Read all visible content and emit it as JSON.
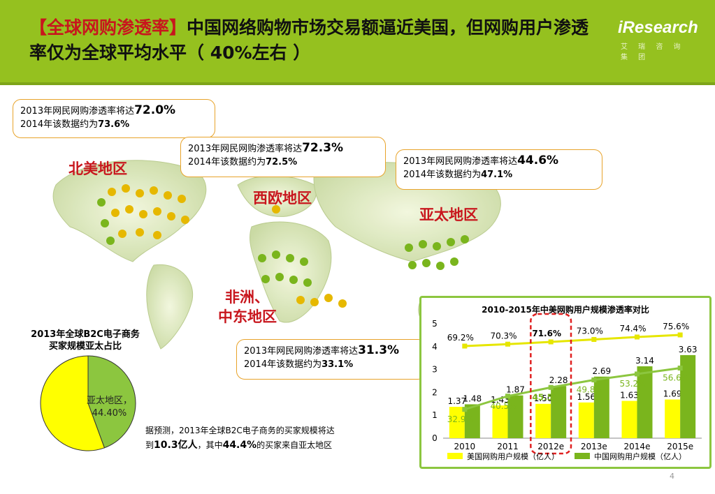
{
  "header": {
    "title_highlight": "【全球网购渗透率】",
    "title_rest": "中国网络购物市场交易额逼近美国，但网购用户渗透率仅为全球平均水平（ 40%左右 ）",
    "logo_text": "iResearch",
    "logo_sub": "艾 瑞 咨 询 集 团"
  },
  "regions": {
    "north_america": "北美地区",
    "western_europe": "西欧地区",
    "asia_pacific": "亚太地区",
    "africa_line1": "非洲、",
    "africa_line2": "中东地区"
  },
  "callouts": {
    "north_america": {
      "line1_prefix": "2013年网民网购渗透率将达",
      "line1_value": "72.0%",
      "line2_prefix": "2014年该数据约为",
      "line2_value": "73.6%"
    },
    "western_europe": {
      "line1_prefix": "2013年网民网购渗透率将达",
      "line1_value": "72.3%",
      "line2_prefix": "2014年该数据约为",
      "line2_value": "72.5%"
    },
    "asia_pacific": {
      "line1_prefix": "2013年网民网购渗透率将达",
      "line1_value": "44.6%",
      "line2_prefix": "2014年该数据约为",
      "line2_value": "47.1%"
    },
    "africa": {
      "line1_prefix": "2013年网民网购渗透率将达",
      "line1_value": "31.3%",
      "line2_prefix": "2014年该数据约为",
      "line2_value": "33.1%"
    }
  },
  "pie": {
    "title_line1": "2013年全球B2C电子商务",
    "title_line2": "买家规模亚太占比",
    "label_line1": "亚太地区，",
    "label_line2": "44.40%"
  },
  "note": {
    "part1": "据预测，2013年全球B2C电子商务的买家规模将达到",
    "value1": "10.3亿人",
    "part2": "，其中",
    "value2": "44.4%",
    "part3": "的买家来自亚太地区"
  },
  "colors": {
    "header": "#95c11f",
    "usa": "#ffff00",
    "china": "#7ab51d",
    "us_line": "#e6e600",
    "cn_line": "#8cc63f",
    "accent_red": "#c8161d",
    "callout_border": "#e8a32a"
  },
  "page_number": "4",
  "chart_data": [
    {
      "type": "pie",
      "title": "2013年全球B2C电子商务买家规模亚太占比",
      "slices": [
        {
          "name": "亚太地区",
          "value": 44.4,
          "color": "#8cc63f"
        },
        {
          "name": "",
          "value": 55.6,
          "color": "#ffff00"
        }
      ],
      "label": "亚太地区，44.40%"
    },
    {
      "type": "bar",
      "title": "2010-2015年中美网购用户规模渗透率对比",
      "categories": [
        "2010",
        "2011",
        "2012e",
        "2013e",
        "2014e",
        "2015e"
      ],
      "yticks": [
        "0",
        "1",
        "2",
        "3",
        "4",
        "5"
      ],
      "ylim": [
        0,
        5
      ],
      "series": [
        {
          "name": "美国网购用户规模（亿人）",
          "values": [
            1.37,
            1.43,
            1.5,
            1.56,
            1.63,
            1.69
          ],
          "labels": [
            "1.37",
            "1.43",
            "1.50",
            "1.56",
            "1.63",
            "1.69"
          ],
          "color": "#ffff00"
        },
        {
          "name": "中国网购用户规模（亿人）",
          "values": [
            1.48,
            1.87,
            2.28,
            2.69,
            3.14,
            3.63
          ],
          "labels": [
            "1.48",
            "1.87",
            "2.28",
            "2.69",
            "3.14",
            "3.63"
          ],
          "color": "#7ab51d"
        }
      ],
      "line_series": [
        {
          "values": [
            69.2,
            70.3,
            71.6,
            73.0,
            74.4,
            75.6
          ],
          "labels": [
            "69.2%",
            "70.3%",
            "71.6%",
            "73.0%",
            "74.4%",
            "75.6%"
          ],
          "color": "#e6e600"
        },
        {
          "values": [
            32.9,
            40.5,
            45.5,
            49.8,
            53.2,
            56.6
          ],
          "labels": [
            "32.9%",
            "40.5%",
            "45.5%",
            "49.8%",
            "53.2%",
            "56.6%"
          ],
          "color": "#8cc63f"
        }
      ],
      "highlight_category": "2012e"
    }
  ]
}
